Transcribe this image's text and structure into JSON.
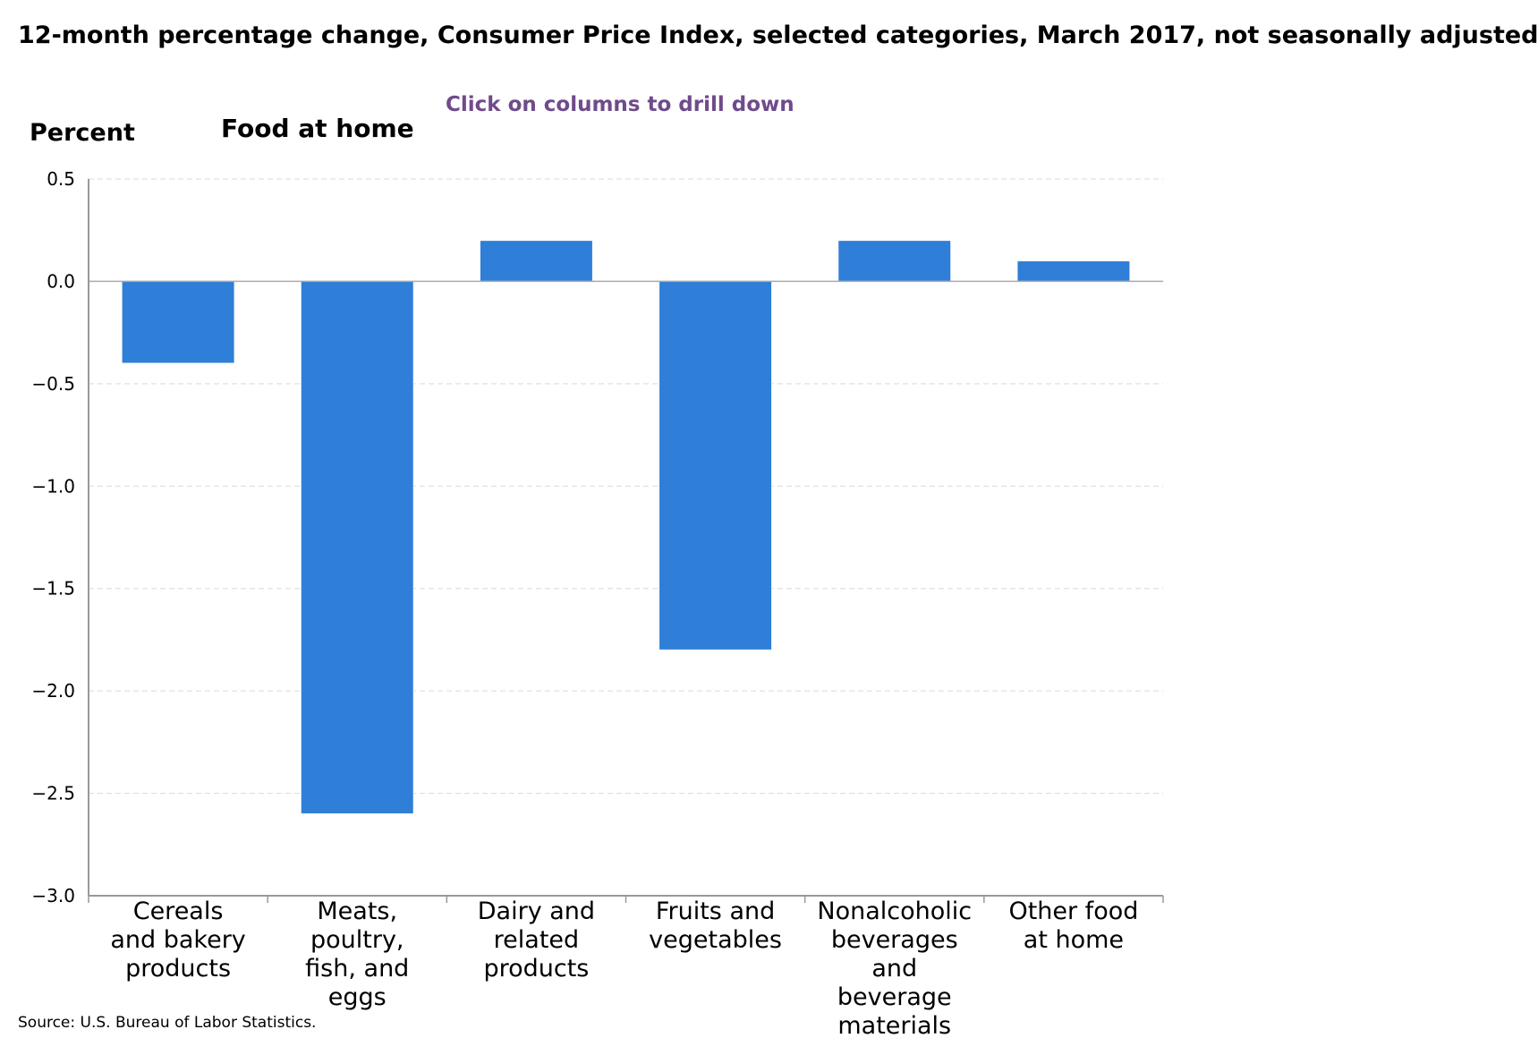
{
  "title": "12-month percentage change, Consumer Price Index, selected categories, March 2017, not seasonally adjusted",
  "drill_hint": "Click on columns to drill down",
  "source": "Source: U.S. Bureau of Labor Statistics.",
  "chart_data": {
    "type": "bar",
    "title": "Food at home",
    "ylabel": "Percent",
    "xlabel": "",
    "categories": [
      [
        "Cereals",
        "and bakery",
        "products"
      ],
      [
        "Meats,",
        "poultry,",
        "fish, and",
        "eggs"
      ],
      [
        "Dairy and",
        "related",
        "products"
      ],
      [
        "Fruits and",
        "vegetables"
      ],
      [
        "Nonalcoholic",
        "beverages",
        "and",
        "beverage",
        "materials"
      ],
      [
        "Other food",
        "at home"
      ]
    ],
    "values": [
      -0.4,
      -2.6,
      0.2,
      -1.8,
      0.2,
      0.1
    ],
    "ylim": [
      -3.0,
      0.5
    ],
    "yticks": [
      0.5,
      0.0,
      -0.5,
      -1.0,
      -1.5,
      -2.0,
      -2.5,
      -3.0
    ],
    "ytick_labels": [
      "0.5",
      "0.0",
      "−0.5",
      "−1.0",
      "−1.5",
      "−2.0",
      "−2.5",
      "−3.0"
    ],
    "grid": true,
    "legend": "none",
    "bar_color": "#2f7ed8"
  },
  "colors": {
    "bar": "#2f7ed8",
    "hint": "#6f4b8b",
    "grid": "#d9d9d9",
    "axis": "#999999"
  }
}
